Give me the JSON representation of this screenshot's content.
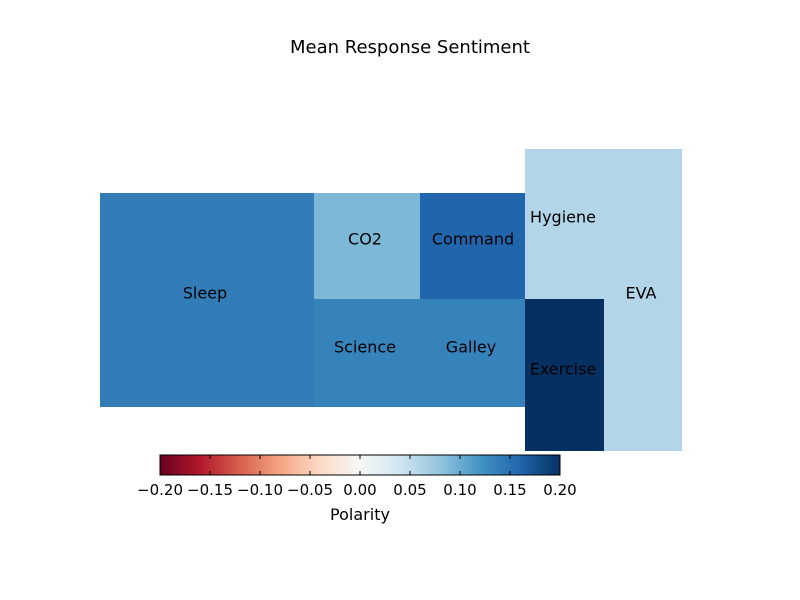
{
  "chart_data": {
    "type": "treemap",
    "title": "Mean Response Sentiment",
    "cells": [
      {
        "label": "Sleep",
        "polarity": 0.14
      },
      {
        "label": "CO2",
        "polarity": 0.09
      },
      {
        "label": "Command",
        "polarity": 0.16
      },
      {
        "label": "Science",
        "polarity": 0.135
      },
      {
        "label": "Galley",
        "polarity": 0.135
      },
      {
        "label": "Hygiene",
        "polarity": 0.06
      },
      {
        "label": "Exercise",
        "polarity": 0.2
      },
      {
        "label": "EVA",
        "polarity": 0.06
      }
    ],
    "colorbar": {
      "label": "Polarity",
      "min": -0.2,
      "max": 0.2,
      "ticks": [
        "−0.20",
        "−0.15",
        "−0.10",
        "−0.05",
        "0.00",
        "0.05",
        "0.10",
        "0.15",
        "0.20"
      ],
      "colormap": "RdBu",
      "colors": [
        "#67001f",
        "#b2182b",
        "#d6604d",
        "#f4a582",
        "#fddbc7",
        "#f7f7f7",
        "#d1e5f0",
        "#92c5de",
        "#4393c3",
        "#2166ac",
        "#053061"
      ]
    }
  }
}
